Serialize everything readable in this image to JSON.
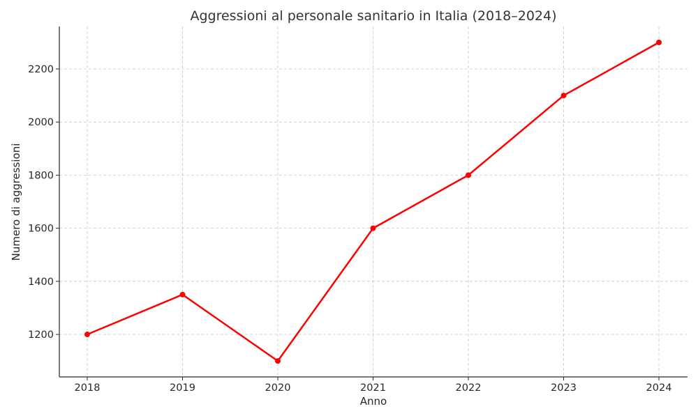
{
  "chart_data": {
    "type": "line",
    "title": "Aggressioni al personale sanitario in Italia (2018–2024)",
    "xlabel": "Anno",
    "ylabel": "Numero di aggressioni",
    "x": [
      "2018",
      "2019",
      "2020",
      "2021",
      "2022",
      "2023",
      "2024"
    ],
    "series": [
      {
        "values": [
          1200,
          1350,
          1100,
          1600,
          1800,
          2100,
          2300
        ],
        "color": "#ff0000",
        "marker": "circle"
      }
    ],
    "yticks": [
      1200,
      1400,
      1600,
      1800,
      2000,
      2200
    ],
    "ylim": [
      1040,
      2360
    ],
    "grid": true,
    "legend": "none"
  }
}
